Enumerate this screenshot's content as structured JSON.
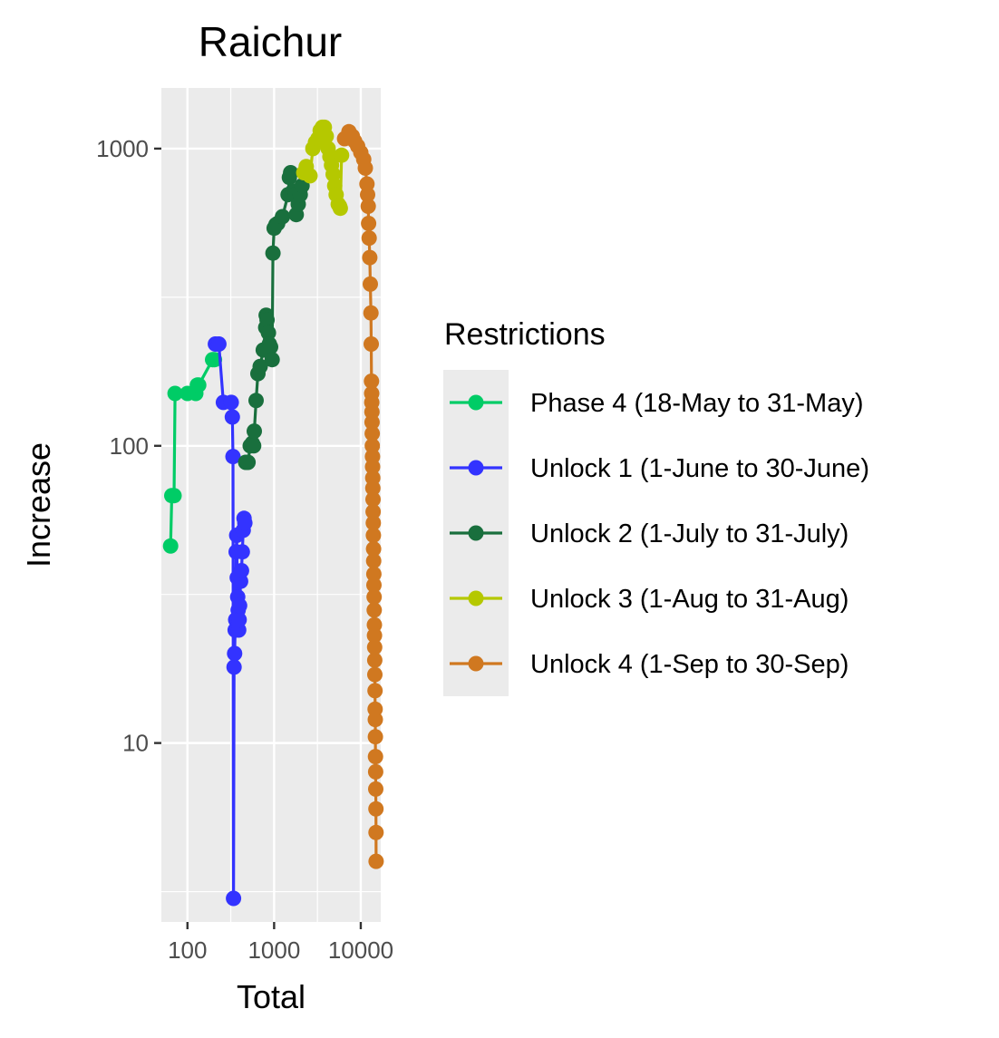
{
  "chart_data": {
    "type": "line",
    "title": "Raichur",
    "xlabel": "Total",
    "ylabel": "Increase",
    "x_scale": "log10",
    "y_scale": "log10",
    "xlim": [
      50,
      17000
    ],
    "ylim": [
      2.5,
      1600
    ],
    "x_ticks": [
      100,
      1000,
      10000
    ],
    "x_tick_labels": [
      "100",
      "1000",
      "10000"
    ],
    "y_ticks": [
      10,
      100,
      1000
    ],
    "y_tick_labels": [
      "10",
      "100",
      "1000"
    ],
    "grid": true,
    "legend_position": "right",
    "legend_title": "Restrictions",
    "series": [
      {
        "name": "Phase 4 (18-May to 31-May)",
        "color": "#00cc66",
        "points": [
          [
            64,
            46
          ],
          [
            66,
            68
          ],
          [
            70,
            68
          ],
          [
            72,
            150
          ],
          [
            100,
            150
          ],
          [
            125,
            150
          ],
          [
            130,
            160
          ],
          [
            135,
            160
          ],
          [
            195,
            195
          ],
          [
            205,
            195
          ]
        ]
      },
      {
        "name": "Unlock 1 (1-June to 30-June)",
        "color": "#3333ff",
        "points": [
          [
            210,
            220
          ],
          [
            230,
            220
          ],
          [
            260,
            140
          ],
          [
            320,
            140
          ],
          [
            330,
            125
          ],
          [
            335,
            92
          ],
          [
            340,
            3
          ],
          [
            345,
            18
          ],
          [
            350,
            20
          ],
          [
            355,
            24
          ],
          [
            360,
            26
          ],
          [
            365,
            44
          ],
          [
            370,
            50
          ],
          [
            375,
            36
          ],
          [
            380,
            31
          ],
          [
            385,
            28
          ],
          [
            390,
            24
          ],
          [
            395,
            26
          ],
          [
            400,
            29
          ],
          [
            410,
            35
          ],
          [
            420,
            38
          ],
          [
            430,
            44
          ],
          [
            440,
            52
          ],
          [
            450,
            57
          ],
          [
            460,
            55
          ]
        ]
      },
      {
        "name": "Unlock 2 (1-July to 31-July)",
        "color": "#196f3d",
        "points": [
          [
            470,
            88
          ],
          [
            500,
            88
          ],
          [
            530,
            100
          ],
          [
            560,
            102
          ],
          [
            580,
            100
          ],
          [
            590,
            112
          ],
          [
            620,
            142
          ],
          [
            650,
            175
          ],
          [
            690,
            185
          ],
          [
            750,
            210
          ],
          [
            800,
            250
          ],
          [
            810,
            275
          ],
          [
            830,
            265
          ],
          [
            860,
            240
          ],
          [
            880,
            220
          ],
          [
            910,
            215
          ],
          [
            950,
            195
          ],
          [
            970,
            445
          ],
          [
            1000,
            540
          ],
          [
            1050,
            555
          ],
          [
            1100,
            560
          ],
          [
            1250,
            590
          ],
          [
            1450,
            700
          ],
          [
            1500,
            800
          ],
          [
            1550,
            830
          ],
          [
            1650,
            720
          ],
          [
            1750,
            700
          ],
          [
            1800,
            600
          ],
          [
            1900,
            650
          ],
          [
            2000,
            700
          ],
          [
            2100,
            750
          ]
        ]
      },
      {
        "name": "Unlock 3 (1-Aug to 31-Aug)",
        "color": "#b5c800",
        "points": [
          [
            2200,
            830
          ],
          [
            2350,
            870
          ],
          [
            2600,
            810
          ],
          [
            2800,
            1000
          ],
          [
            3000,
            1050
          ],
          [
            3200,
            1080
          ],
          [
            3400,
            1150
          ],
          [
            3600,
            1180
          ],
          [
            3800,
            1180
          ],
          [
            4000,
            1100
          ],
          [
            4200,
            1000
          ],
          [
            4400,
            940
          ],
          [
            4600,
            880
          ],
          [
            4800,
            820
          ],
          [
            5000,
            750
          ],
          [
            5200,
            700
          ],
          [
            5500,
            650
          ],
          [
            5700,
            640
          ],
          [
            5800,
            630
          ],
          [
            6000,
            950
          ]
        ]
      },
      {
        "name": "Unlock 4 (1-Sep to 30-Sep)",
        "color": "#d07820",
        "points": [
          [
            6500,
            1080
          ],
          [
            7300,
            1140
          ],
          [
            8000,
            1100
          ],
          [
            8500,
            1060
          ],
          [
            9200,
            1020
          ],
          [
            10000,
            970
          ],
          [
            10800,
            920
          ],
          [
            11300,
            860
          ],
          [
            11800,
            760
          ],
          [
            12000,
            700
          ],
          [
            12200,
            640
          ],
          [
            12300,
            560
          ],
          [
            12500,
            500
          ],
          [
            12700,
            430
          ],
          [
            12900,
            350
          ],
          [
            13100,
            280
          ],
          [
            13200,
            220
          ],
          [
            13300,
            165
          ],
          [
            13350,
            150
          ],
          [
            13400,
            140
          ],
          [
            13450,
            130
          ],
          [
            13500,
            120
          ],
          [
            13550,
            110
          ],
          [
            13600,
            100
          ],
          [
            13650,
            92
          ],
          [
            13700,
            85
          ],
          [
            13750,
            78
          ],
          [
            13800,
            72
          ],
          [
            13850,
            66
          ],
          [
            13900,
            60
          ],
          [
            13950,
            55
          ],
          [
            14000,
            50
          ],
          [
            14050,
            45
          ],
          [
            14100,
            41
          ],
          [
            14150,
            37
          ],
          [
            14200,
            34
          ],
          [
            14250,
            31
          ],
          [
            14300,
            28
          ],
          [
            14350,
            25
          ],
          [
            14400,
            23
          ],
          [
            14450,
            21
          ],
          [
            14500,
            19
          ],
          [
            14550,
            17
          ],
          [
            14600,
            15
          ],
          [
            14650,
            13
          ],
          [
            14700,
            12
          ],
          [
            14750,
            10.5
          ],
          [
            14800,
            9
          ],
          [
            14850,
            8
          ],
          [
            14900,
            7
          ],
          [
            14950,
            6
          ],
          [
            15000,
            5
          ],
          [
            15050,
            4
          ]
        ]
      }
    ]
  }
}
